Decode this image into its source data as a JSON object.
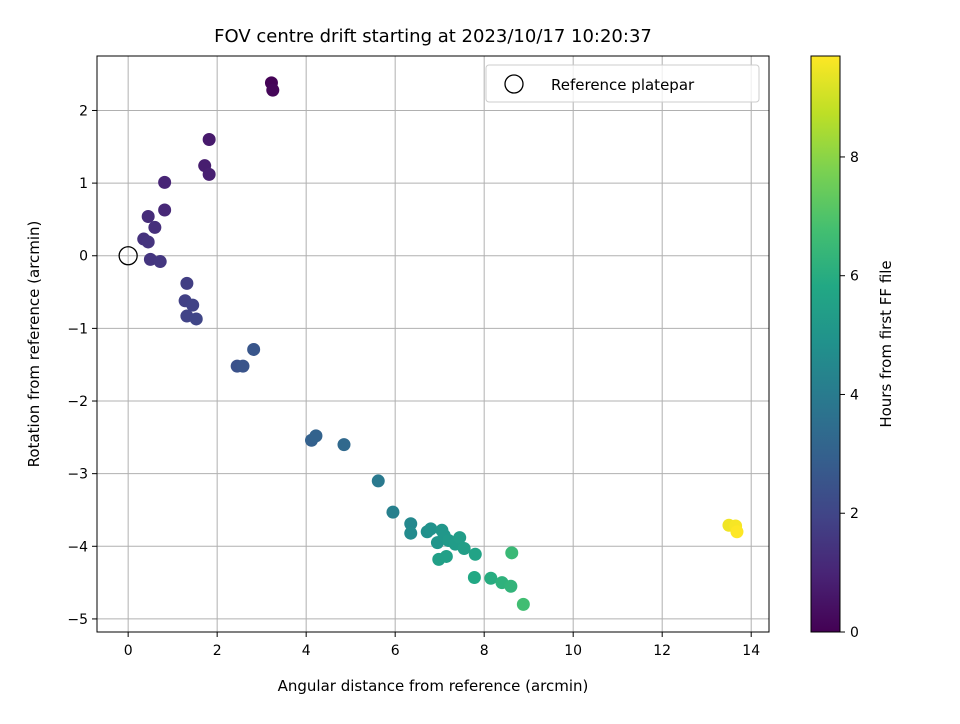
{
  "chart_data": {
    "type": "scatter",
    "title": "FOV centre drift starting at 2023/10/17 10:20:37",
    "xlabel": "Angular distance from reference (arcmin)",
    "ylabel": "Rotation from reference (arcmin)",
    "xlim": [
      -0.7,
      14.4
    ],
    "ylim": [
      -5.18,
      2.75
    ],
    "xticks": [
      0,
      2,
      4,
      6,
      8,
      10,
      12,
      14
    ],
    "yticks": [
      -5,
      -4,
      -3,
      -2,
      -1,
      0,
      1,
      2
    ],
    "xtick_labels": [
      "0",
      "2",
      "4",
      "6",
      "8",
      "10",
      "12",
      "14"
    ],
    "ytick_labels": [
      "−5",
      "−4",
      "−3",
      "−2",
      "−1",
      "0",
      "1",
      "2"
    ],
    "grid": true,
    "legend": {
      "position": "top-right",
      "entries": [
        "Reference platepar"
      ]
    },
    "colorbar": {
      "label": "Hours from first FF file",
      "range": [
        0,
        9.7
      ],
      "ticks": [
        0,
        2,
        4,
        6,
        8
      ],
      "tick_labels": [
        "0",
        "2",
        "4",
        "6",
        "8"
      ],
      "colormap": "viridis"
    },
    "reference_point": {
      "x": 0,
      "y": 0
    },
    "points": [
      {
        "x": 3.22,
        "y": 2.38,
        "t": 0.05
      },
      {
        "x": 3.25,
        "y": 2.28,
        "t": 0.15
      },
      {
        "x": 1.82,
        "y": 1.6,
        "t": 0.7
      },
      {
        "x": 1.72,
        "y": 1.24,
        "t": 0.8
      },
      {
        "x": 1.82,
        "y": 1.12,
        "t": 0.85
      },
      {
        "x": 0.82,
        "y": 1.01,
        "t": 1.0
      },
      {
        "x": 0.82,
        "y": 0.63,
        "t": 1.1
      },
      {
        "x": 0.45,
        "y": 0.54,
        "t": 1.2
      },
      {
        "x": 0.6,
        "y": 0.39,
        "t": 1.3
      },
      {
        "x": 0.35,
        "y": 0.23,
        "t": 1.4
      },
      {
        "x": 0.45,
        "y": 0.19,
        "t": 1.45
      },
      {
        "x": 0.5,
        "y": -0.05,
        "t": 1.5
      },
      {
        "x": 0.72,
        "y": -0.08,
        "t": 1.55
      },
      {
        "x": 1.32,
        "y": -0.38,
        "t": 1.75
      },
      {
        "x": 1.28,
        "y": -0.62,
        "t": 1.85
      },
      {
        "x": 1.45,
        "y": -0.68,
        "t": 1.9
      },
      {
        "x": 1.32,
        "y": -0.83,
        "t": 1.95
      },
      {
        "x": 1.53,
        "y": -0.87,
        "t": 2.0
      },
      {
        "x": 2.45,
        "y": -1.52,
        "t": 2.4
      },
      {
        "x": 2.58,
        "y": -1.52,
        "t": 2.5
      },
      {
        "x": 2.82,
        "y": -1.29,
        "t": 2.6
      },
      {
        "x": 4.12,
        "y": -2.54,
        "t": 3.0
      },
      {
        "x": 4.22,
        "y": -2.48,
        "t": 3.05
      },
      {
        "x": 4.85,
        "y": -2.6,
        "t": 3.3
      },
      {
        "x": 5.62,
        "y": -3.1,
        "t": 3.9
      },
      {
        "x": 5.95,
        "y": -3.53,
        "t": 4.2
      },
      {
        "x": 6.35,
        "y": -3.69,
        "t": 4.5
      },
      {
        "x": 6.35,
        "y": -3.82,
        "t": 4.6
      },
      {
        "x": 6.72,
        "y": -3.8,
        "t": 4.8
      },
      {
        "x": 6.8,
        "y": -3.76,
        "t": 4.9
      },
      {
        "x": 6.95,
        "y": -3.95,
        "t": 5.0
      },
      {
        "x": 7.05,
        "y": -3.78,
        "t": 5.05
      },
      {
        "x": 7.1,
        "y": -3.85,
        "t": 5.1
      },
      {
        "x": 7.2,
        "y": -3.92,
        "t": 5.2
      },
      {
        "x": 7.35,
        "y": -3.97,
        "t": 5.3
      },
      {
        "x": 7.45,
        "y": -3.88,
        "t": 5.35
      },
      {
        "x": 7.55,
        "y": -4.03,
        "t": 5.4
      },
      {
        "x": 6.98,
        "y": -4.18,
        "t": 5.45
      },
      {
        "x": 7.15,
        "y": -4.14,
        "t": 5.5
      },
      {
        "x": 7.8,
        "y": -4.11,
        "t": 5.6
      },
      {
        "x": 7.78,
        "y": -4.43,
        "t": 5.8
      },
      {
        "x": 8.15,
        "y": -4.44,
        "t": 6.0
      },
      {
        "x": 8.4,
        "y": -4.5,
        "t": 6.2
      },
      {
        "x": 8.6,
        "y": -4.55,
        "t": 6.3
      },
      {
        "x": 8.62,
        "y": -4.09,
        "t": 6.5
      },
      {
        "x": 8.88,
        "y": -4.8,
        "t": 6.7
      },
      {
        "x": 13.5,
        "y": -3.71,
        "t": 9.5
      },
      {
        "x": 13.65,
        "y": -3.72,
        "t": 9.6
      },
      {
        "x": 13.68,
        "y": -3.8,
        "t": 9.7
      }
    ]
  }
}
